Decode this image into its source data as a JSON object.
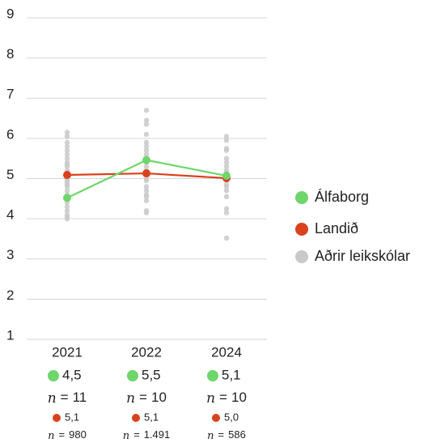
{
  "chart_data": {
    "type": "line",
    "categories": [
      "2021",
      "2022",
      "2024"
    ],
    "ylim": [
      1,
      9
    ],
    "yticks": [
      1,
      2,
      3,
      4,
      5,
      6,
      7,
      8,
      9
    ],
    "grid": true,
    "legend": "right",
    "n_symbol": "n",
    "n_equals": "=",
    "series": [
      {
        "name": "Álfaborg",
        "color": "#6fd66c",
        "values": [
          4.52,
          5.46,
          5.07
        ],
        "value_labels": [
          "4,5",
          "5,5",
          "5,1"
        ],
        "n": [
          11,
          10,
          10
        ]
      },
      {
        "name": "Landið",
        "color": "#d9421c",
        "values": [
          5.09,
          5.13,
          5.01
        ],
        "value_labels": [
          "5,1",
          "5,1",
          "5,0"
        ],
        "n": [
          980,
          1491,
          586
        ],
        "n_labels": [
          "980",
          "1.491",
          "586"
        ]
      },
      {
        "name": "Aðrir leikskólar",
        "color": "#c9c9c9",
        "values": [
          [
            6.15,
            6.05,
            5.9,
            5.8,
            5.7,
            5.6,
            5.5,
            5.4,
            5.35,
            5.3,
            5.2,
            5.15,
            5.1,
            5.0,
            4.95,
            4.9,
            4.85,
            4.8,
            4.7,
            4.6,
            4.5,
            4.4,
            4.3,
            4.2,
            4.1,
            4.05,
            4.0
          ],
          [
            6.7,
            6.45,
            6.35,
            6.1,
            5.9,
            5.8,
            5.7,
            5.6,
            5.5,
            5.4,
            5.3,
            5.2,
            5.1,
            5.0,
            4.95,
            4.8,
            4.7,
            4.6,
            4.55,
            4.45,
            4.2,
            4.15
          ],
          [
            6.05,
            5.95,
            5.75,
            5.7,
            5.5,
            5.4,
            5.3,
            5.2,
            5.15,
            5.1,
            5.0,
            4.95,
            4.85,
            4.8,
            4.7,
            4.55,
            4.25,
            4.15,
            3.52
          ]
        ]
      }
    ]
  }
}
